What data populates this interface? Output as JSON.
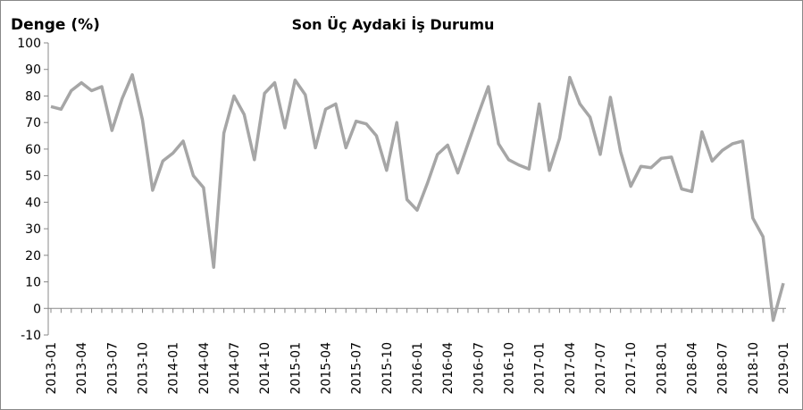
{
  "chart_data": {
    "type": "line",
    "title": "Son Üç Aydaki İş Durumu",
    "y_label": "Denge (%)",
    "categories": [
      "2013-01",
      null,
      null,
      "2013-04",
      null,
      null,
      "2013-07",
      null,
      null,
      "2013-10",
      null,
      null,
      "2014-01",
      null,
      null,
      "2014-04",
      null,
      null,
      "2014-07",
      null,
      null,
      "2014-10",
      null,
      null,
      "2015-01",
      null,
      null,
      "2015-04",
      null,
      null,
      "2015-07",
      null,
      null,
      "2015-10",
      null,
      null,
      "2016-01",
      null,
      null,
      "2016-04",
      null,
      null,
      "2016-07",
      null,
      null,
      "2016-10",
      null,
      null,
      "2017-01",
      null,
      null,
      "2017-04",
      null,
      null,
      "2017-07",
      null,
      null,
      "2017-10",
      null,
      null,
      "2018-01",
      null,
      null,
      "2018-04",
      null,
      null,
      "2018-07",
      null,
      null,
      "2018-10",
      null,
      null,
      "2019-01"
    ],
    "series": [
      {
        "name": "Denge",
        "color": "#a6a6a6",
        "values": [
          76,
          75,
          82,
          85,
          82,
          83.5,
          67,
          79,
          88,
          71,
          44.5,
          55.5,
          58.5,
          63,
          50,
          45.5,
          15.5,
          66,
          80,
          73,
          56,
          81,
          85,
          68,
          86,
          80.5,
          60.5,
          75,
          77,
          60.5,
          70.5,
          69.5,
          65,
          52,
          70,
          41,
          37,
          47,
          58,
          61.5,
          51,
          62,
          73,
          83.5,
          62,
          56,
          54,
          52.5,
          77,
          52,
          64,
          87,
          77,
          72,
          58,
          79.5,
          59,
          46,
          53.5,
          53,
          56.5,
          57,
          45,
          44,
          66.5,
          55.5,
          59.5,
          62,
          63,
          34,
          27,
          -4.5,
          9.5
        ]
      }
    ],
    "ylim": [
      -10,
      100
    ],
    "yticks": [
      -10,
      0,
      10,
      20,
      30,
      40,
      50,
      60,
      70,
      80,
      90,
      100
    ],
    "grid": false
  }
}
